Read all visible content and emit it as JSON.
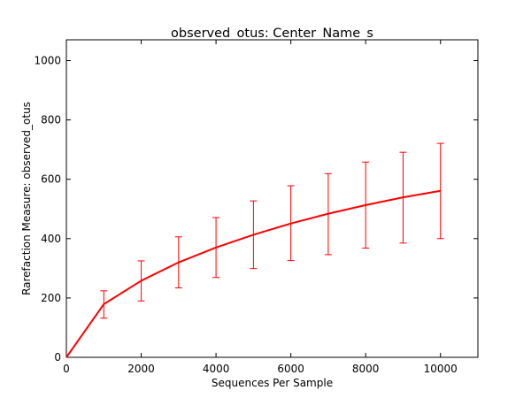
{
  "chart_data": {
    "type": "line",
    "title": "observed_otus: Center_Name_s",
    "xlabel": "Sequences Per Sample",
    "ylabel": "Rarefaction Measure: observed_otus",
    "xlim": [
      0,
      11000
    ],
    "ylim": [
      0,
      1070
    ],
    "xticks": [
      0,
      2000,
      4000,
      6000,
      8000,
      10000
    ],
    "yticks": [
      0,
      200,
      400,
      600,
      800,
      1000
    ],
    "grid": false,
    "series": [
      {
        "color": "#ff0000",
        "x": [
          0,
          1000,
          2000,
          3000,
          4000,
          5000,
          6000,
          7000,
          8000,
          9000,
          10000
        ],
        "y": [
          0,
          179,
          258,
          320,
          370,
          413,
          451,
          484,
          513,
          539,
          561
        ],
        "err_low": [
          null,
          132,
          190,
          234,
          269,
          299,
          326,
          346,
          368,
          385,
          400
        ],
        "err_high": [
          null,
          224,
          325,
          406,
          471,
          527,
          578,
          619,
          658,
          691,
          721
        ]
      }
    ]
  }
}
